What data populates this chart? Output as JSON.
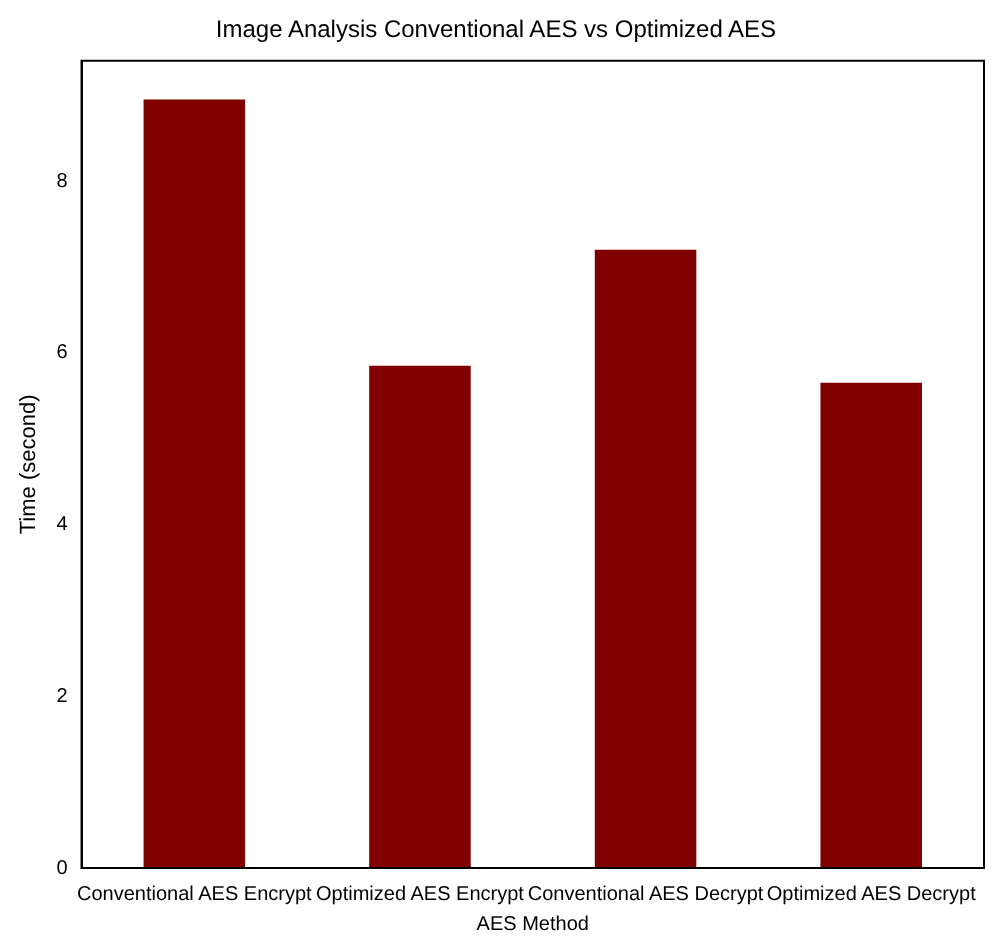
{
  "chart_data": {
    "type": "bar",
    "title": "Image Analysis Conventional AES vs Optimized AES",
    "xlabel": "AES Method",
    "ylabel": "Time (second)",
    "categories": [
      "Conventional AES Encrypt",
      "Optimized AES Encrypt",
      "Conventional AES Decrypt",
      "Optimized AES Decrypt"
    ],
    "values": [
      8.95,
      5.85,
      7.2,
      5.65
    ],
    "color": "#800000",
    "ylim": [
      0,
      9.4
    ],
    "yticks": [
      0,
      2,
      4,
      6,
      8
    ],
    "grid": false,
    "legend": false
  }
}
